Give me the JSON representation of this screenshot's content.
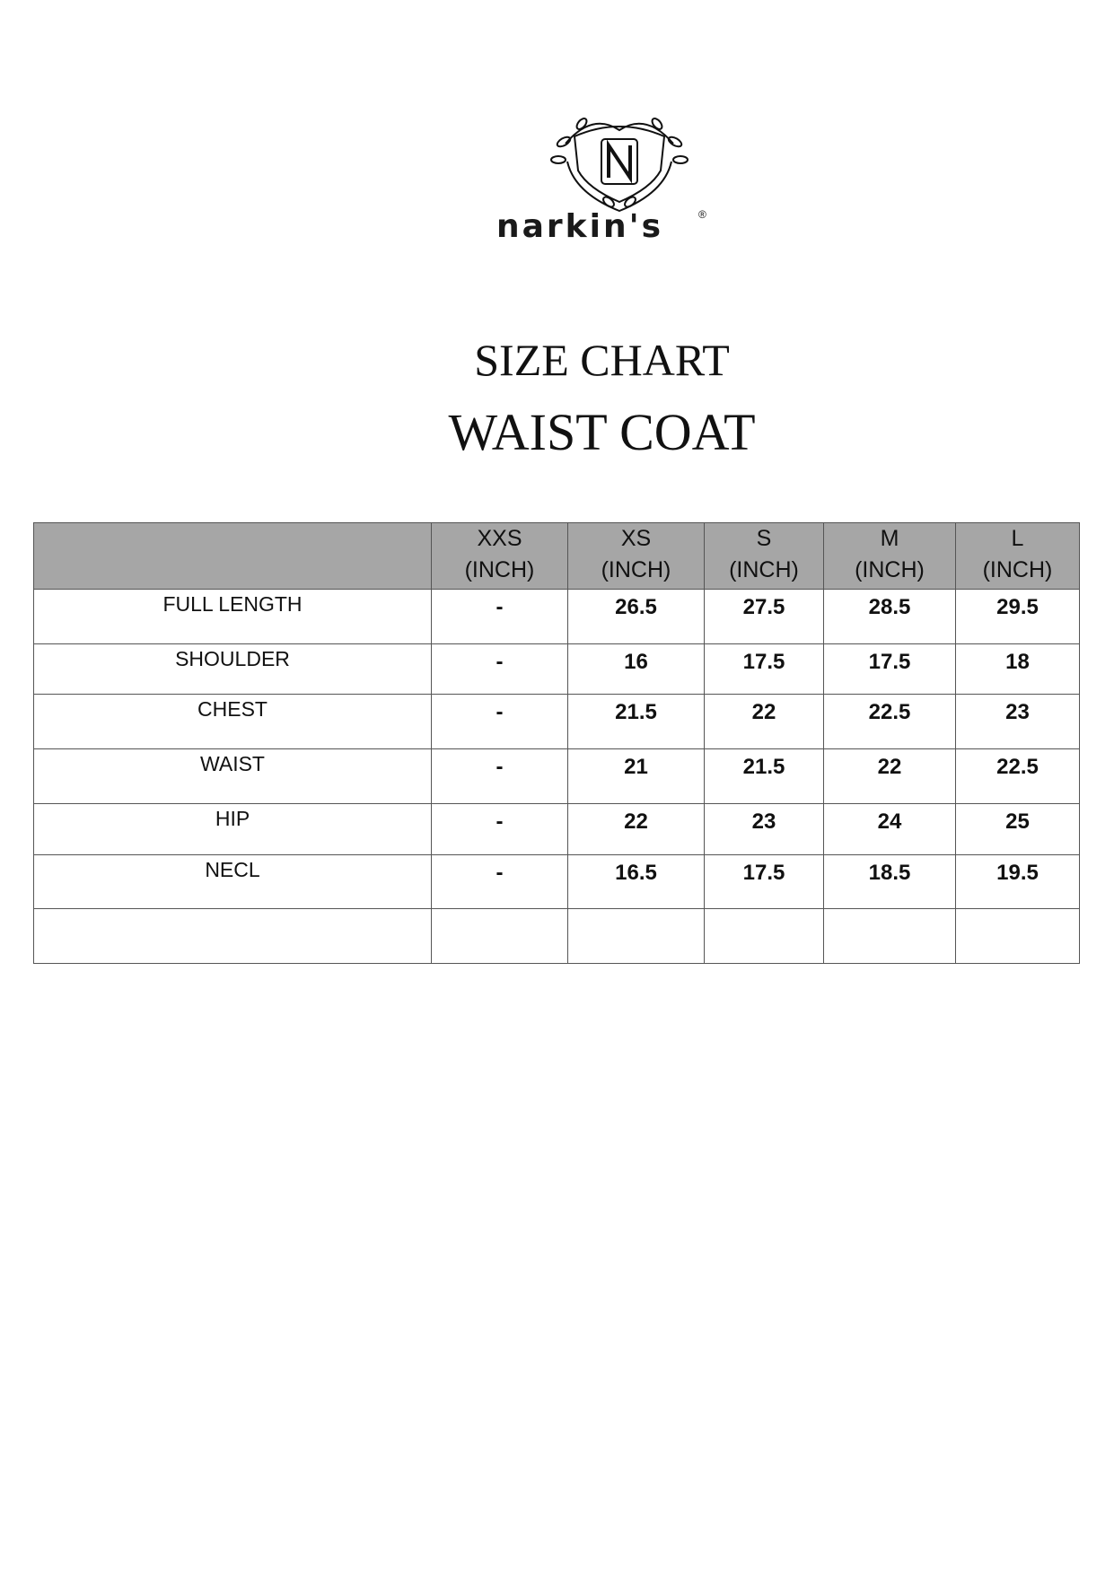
{
  "brand": {
    "name": "narkin's",
    "registered": "®",
    "emblem_letter": "N"
  },
  "titles": {
    "line1": "SIZE CHART",
    "line2": "WAIST COAT"
  },
  "table": {
    "header_fill": "#a6a6a6",
    "columns": [
      {
        "size": "XXS",
        "unit": "(INCH)"
      },
      {
        "size": "XS",
        "unit": "(INCH)"
      },
      {
        "size": "S",
        "unit": "(INCH)"
      },
      {
        "size": "M",
        "unit": "(INCH)"
      },
      {
        "size": "L",
        "unit": "(INCH)"
      }
    ],
    "rows": [
      {
        "label": "FULL LENGTH",
        "values": [
          "-",
          "26.5",
          "27.5",
          "28.5",
          "29.5"
        ]
      },
      {
        "label": "SHOULDER",
        "values": [
          "-",
          "16",
          "17.5",
          "17.5",
          "18"
        ]
      },
      {
        "label": "CHEST",
        "values": [
          "-",
          "21.5",
          "22",
          "22.5",
          "23"
        ]
      },
      {
        "label": "WAIST",
        "values": [
          "-",
          "21",
          "21.5",
          "22",
          "22.5"
        ]
      },
      {
        "label": "HIP",
        "values": [
          "-",
          "22",
          "23",
          "24",
          "25"
        ]
      },
      {
        "label": "NECL",
        "values": [
          "-",
          "16.5",
          "17.5",
          "18.5",
          "19.5"
        ]
      }
    ]
  }
}
